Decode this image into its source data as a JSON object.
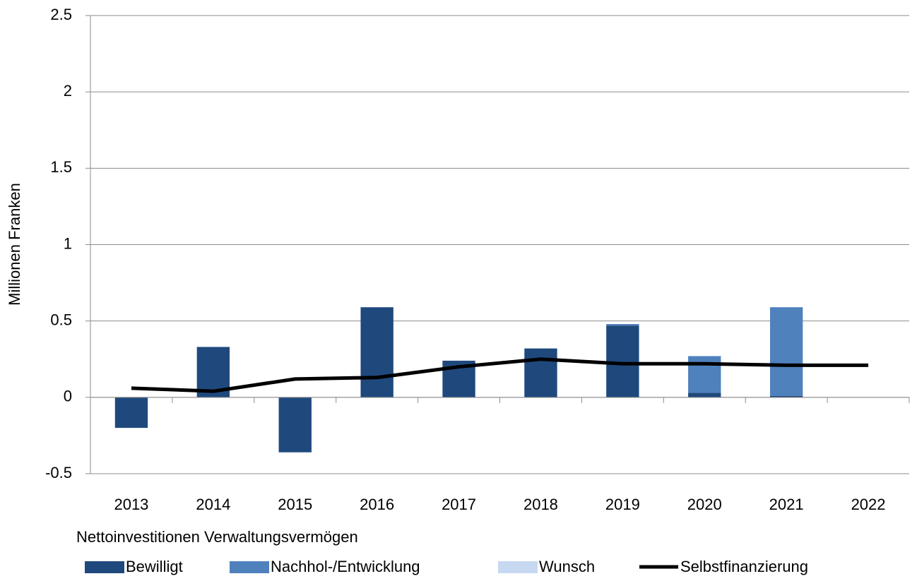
{
  "chart_data": {
    "type": "bar",
    "y_label": "Millionen Franken",
    "x_label": "Nettoinvestitionen Verwaltungsvermögen",
    "categories": [
      "2013",
      "2014",
      "2015",
      "2016",
      "2017",
      "2018",
      "2019",
      "2020",
      "2021",
      "2022"
    ],
    "series": [
      {
        "name": "Bewilligt",
        "type": "bar",
        "color": "#1f497d",
        "values": [
          -0.2,
          0.33,
          -0.36,
          0.59,
          0.24,
          0.32,
          0.47,
          0.03,
          0.01,
          0
        ]
      },
      {
        "name": "Nachhol-/Entwicklung",
        "type": "bar",
        "color": "#4f81bd",
        "values": [
          0,
          0,
          0,
          0,
          0,
          0,
          0.01,
          0.24,
          0.58,
          0
        ]
      },
      {
        "name": "Wunsch",
        "type": "bar",
        "color": "#c6d9f1",
        "values": [
          0,
          0,
          0,
          0,
          0,
          0,
          0,
          0,
          0,
          0
        ]
      },
      {
        "name": "Selbstfinanzierung",
        "type": "line",
        "color": "#000000",
        "values": [
          0.06,
          0.04,
          0.12,
          0.13,
          0.2,
          0.25,
          0.22,
          0.22,
          0.21,
          0.21
        ]
      }
    ],
    "stacked": true,
    "ylim": [
      -0.5,
      2.5
    ],
    "yticks": [
      -0.5,
      0,
      0.5,
      1,
      1.5,
      2,
      2.5
    ],
    "grid": true
  }
}
